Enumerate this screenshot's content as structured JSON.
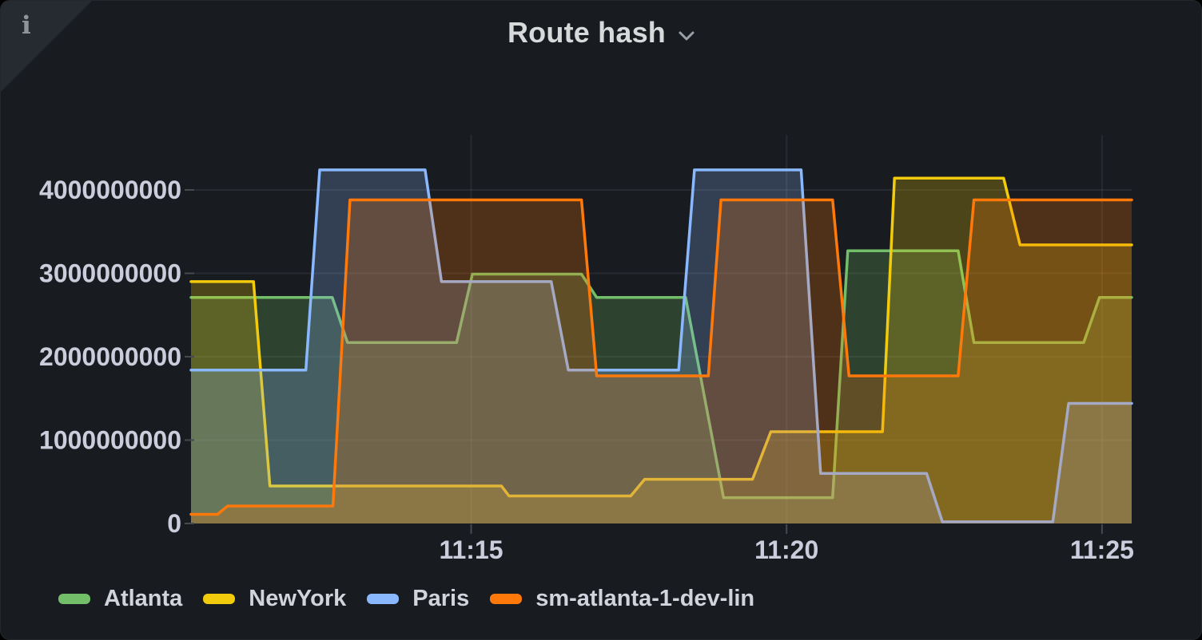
{
  "panel": {
    "title": "Route hash",
    "info_icon": "i"
  },
  "colors": {
    "panel_bg": "#181b1f",
    "page_bg": "#000000",
    "grid": "rgba(204,204,220,0.09)",
    "tick": "#454a52",
    "axis_text": "#ccccdc",
    "title_text": "#d8d9da",
    "legend_text": "#d2d3dc",
    "info_triangle": "#262a31"
  },
  "chart_data": {
    "type": "area",
    "title": "Route hash",
    "line_style": "stepped-area",
    "fill_opacity": 0.24,
    "line_width": 3.5,
    "legend_position": "bottom",
    "x_axis": {
      "unit": "time-of-day",
      "range_minutes_after_11h": [
        10.56,
        25.47
      ],
      "grid": true,
      "ticks": [
        {
          "minutes_after_11h": 15,
          "label": "11:15"
        },
        {
          "minutes_after_11h": 20,
          "label": "11:20"
        },
        {
          "minutes_after_11h": 25,
          "label": "11:25"
        }
      ]
    },
    "y_axis": {
      "range": [
        0,
        4660000000
      ],
      "grid": true,
      "ticks": [
        {
          "value": 0,
          "label": "0"
        },
        {
          "value": 1000000000,
          "label": "1000000000"
        },
        {
          "value": 2000000000,
          "label": "2000000000"
        },
        {
          "value": 3000000000,
          "label": "3000000000"
        },
        {
          "value": 4000000000,
          "label": "4000000000"
        }
      ]
    },
    "series": [
      {
        "name": "Atlanta",
        "color": "#73BF69",
        "points": [
          [
            10.56,
            2710000000
          ],
          [
            12.8,
            2710000000
          ],
          [
            13.04,
            2170000000
          ],
          [
            14.77,
            2170000000
          ],
          [
            15.02,
            2990000000
          ],
          [
            16.75,
            2990000000
          ],
          [
            16.99,
            2710000000
          ],
          [
            18.4,
            2710000000
          ],
          [
            19.0,
            310000000
          ],
          [
            20.73,
            310000000
          ],
          [
            20.97,
            3270000000
          ],
          [
            22.72,
            3270000000
          ],
          [
            22.97,
            2170000000
          ],
          [
            24.71,
            2170000000
          ],
          [
            24.96,
            2710000000
          ],
          [
            25.47,
            2710000000
          ]
        ]
      },
      {
        "name": "NewYork",
        "color": "#F2CC0C",
        "points": [
          [
            10.56,
            2900000000
          ],
          [
            11.55,
            2900000000
          ],
          [
            11.81,
            450000000
          ],
          [
            15.48,
            450000000
          ],
          [
            15.6,
            330000000
          ],
          [
            17.53,
            330000000
          ],
          [
            17.75,
            530000000
          ],
          [
            19.46,
            530000000
          ],
          [
            19.75,
            1100000000
          ],
          [
            21.52,
            1100000000
          ],
          [
            21.71,
            4140000000
          ],
          [
            23.44,
            4140000000
          ],
          [
            23.7,
            3340000000
          ],
          [
            25.47,
            3340000000
          ]
        ]
      },
      {
        "name": "Paris",
        "color": "#8AB8FF",
        "points": [
          [
            10.56,
            1840000000
          ],
          [
            12.38,
            1840000000
          ],
          [
            12.6,
            4240000000
          ],
          [
            14.27,
            4240000000
          ],
          [
            14.53,
            2900000000
          ],
          [
            16.27,
            2900000000
          ],
          [
            16.54,
            1840000000
          ],
          [
            18.29,
            1840000000
          ],
          [
            18.54,
            4240000000
          ],
          [
            20.23,
            4240000000
          ],
          [
            20.54,
            600000000
          ],
          [
            22.22,
            600000000
          ],
          [
            22.47,
            20000000
          ],
          [
            24.22,
            20000000
          ],
          [
            24.47,
            1440000000
          ],
          [
            25.47,
            1440000000
          ]
        ]
      },
      {
        "name": "sm-atlanta-1-dev-lin",
        "color": "#FF780A",
        "points": [
          [
            10.56,
            110000000
          ],
          [
            10.98,
            110000000
          ],
          [
            11.14,
            210000000
          ],
          [
            12.81,
            210000000
          ],
          [
            13.08,
            3880000000
          ],
          [
            16.75,
            3880000000
          ],
          [
            16.99,
            1770000000
          ],
          [
            18.76,
            1770000000
          ],
          [
            18.96,
            3880000000
          ],
          [
            20.73,
            3880000000
          ],
          [
            20.99,
            1770000000
          ],
          [
            22.72,
            1770000000
          ],
          [
            22.97,
            3880000000
          ],
          [
            25.47,
            3880000000
          ]
        ]
      }
    ]
  }
}
